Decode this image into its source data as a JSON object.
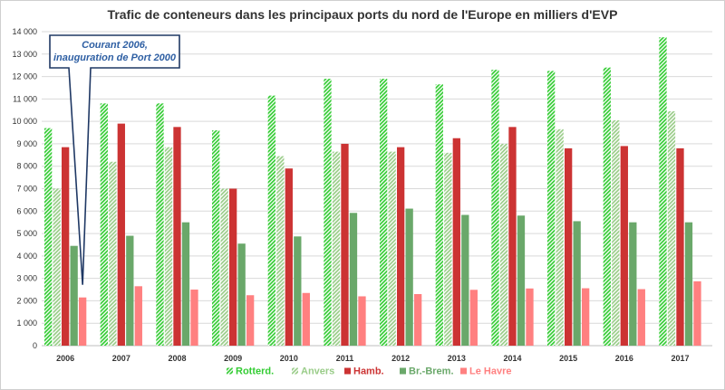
{
  "chart_data": {
    "type": "bar",
    "title": "Trafic de conteneurs dans les principaux ports du nord de l'Europe en milliers d'EVP",
    "xlabel": "",
    "ylabel": "",
    "ylim": [
      0,
      14000
    ],
    "yticks": [
      0,
      1000,
      2000,
      3000,
      4000,
      5000,
      6000,
      7000,
      8000,
      9000,
      10000,
      11000,
      12000,
      13000,
      14000
    ],
    "ytick_labels": [
      "0",
      "1 000",
      "2 000",
      "3 000",
      "4 000",
      "5 000",
      "6 000",
      "7 000",
      "8 000",
      "9 000",
      "10 000",
      "11 000",
      "12 000",
      "13 000",
      "14 000"
    ],
    "grid": true,
    "legend_position": "bottom",
    "categories": [
      "2006",
      "2007",
      "2008",
      "2009",
      "2010",
      "2011",
      "2012",
      "2013",
      "2014",
      "2015",
      "2016",
      "2017"
    ],
    "series": [
      {
        "name": "Rotterd.",
        "color": "#33cc33",
        "pattern": "diagonal-hatch",
        "values": [
          9700,
          10800,
          10800,
          9600,
          11150,
          11900,
          11900,
          11650,
          12300,
          12250,
          12400,
          13750
        ]
      },
      {
        "name": "Anvers",
        "color": "#99cc88",
        "pattern": "diagonal-hatch",
        "values": [
          7000,
          8200,
          8850,
          7000,
          8450,
          8650,
          8650,
          8600,
          9000,
          9650,
          10050,
          10450
        ]
      },
      {
        "name": "Hamb.",
        "color": "#cc3333",
        "pattern": "solid",
        "values": [
          8850,
          9900,
          9750,
          7000,
          7900,
          9000,
          8850,
          9250,
          9750,
          8800,
          8900,
          8800
        ]
      },
      {
        "name": "Br.-Brem.",
        "color": "#6aa86a",
        "pattern": "solid",
        "values": [
          4450,
          4900,
          5500,
          4550,
          4870,
          5920,
          6110,
          5830,
          5800,
          5550,
          5500,
          5500
        ]
      },
      {
        "name": "Le Havre",
        "color": "#ff8080",
        "pattern": "solid",
        "values": [
          2150,
          2650,
          2500,
          2250,
          2350,
          2200,
          2300,
          2490,
          2550,
          2560,
          2520,
          2870
        ]
      }
    ],
    "annotation": {
      "lines": [
        "Courant 2006,",
        "inauguration  de Port 2000"
      ],
      "color": "#2e5fa3",
      "points_to_category": "2006",
      "points_to_series": "Le Havre"
    }
  }
}
